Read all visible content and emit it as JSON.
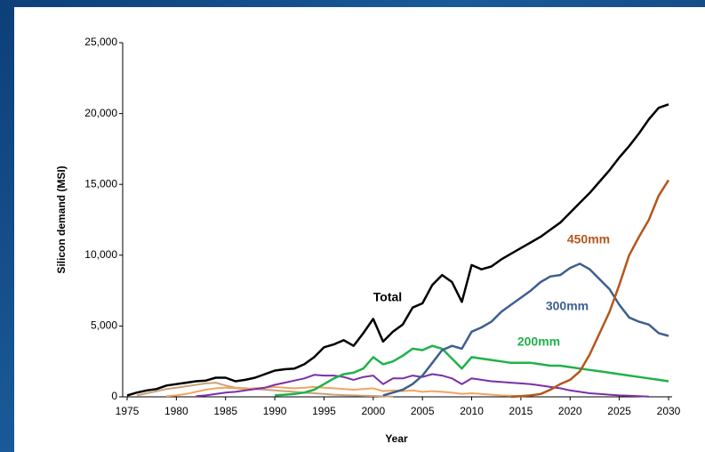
{
  "chart_data": {
    "type": "line",
    "xlabel": "Year",
    "ylabel": "Silicon demand (MSI)",
    "x": [
      1975,
      1976,
      1977,
      1978,
      1979,
      1980,
      1981,
      1982,
      1983,
      1984,
      1985,
      1986,
      1987,
      1988,
      1989,
      1990,
      1991,
      1992,
      1993,
      1994,
      1995,
      1996,
      1997,
      1998,
      1999,
      2000,
      2001,
      2002,
      2003,
      2004,
      2005,
      2006,
      2007,
      2008,
      2009,
      2010,
      2011,
      2012,
      2013,
      2014,
      2015,
      2016,
      2017,
      2018,
      2019,
      2020,
      2021,
      2022,
      2023,
      2024,
      2025,
      2026,
      2027,
      2028,
      2029,
      2030
    ],
    "xlim": [
      1975,
      2030
    ],
    "xticks": [
      1975,
      1980,
      1985,
      1990,
      1995,
      2000,
      2005,
      2010,
      2015,
      2020,
      2025,
      2030
    ],
    "ylim": [
      0,
      25000
    ],
    "yticks": [
      0,
      {
        "value": 5000,
        "label": "5,000"
      },
      {
        "value": 10000,
        "label": "10,000"
      },
      {
        "value": 15000,
        "label": "15,000"
      },
      {
        "value": 20000,
        "label": "20,000"
      },
      {
        "value": 25000,
        "label": "25,000"
      }
    ],
    "series": [
      {
        "color": "#c8a27a",
        "values": [
          null,
          100,
          250,
          400,
          550,
          650,
          750,
          850,
          950,
          1000,
          800,
          650,
          600,
          550,
          500,
          450,
          400,
          350,
          300,
          250,
          200,
          150,
          120,
          100,
          80,
          60,
          40,
          20,
          null,
          null,
          null,
          null,
          null,
          null,
          null,
          null,
          null,
          null,
          null,
          null,
          null,
          null,
          null,
          null,
          null,
          null,
          null,
          null,
          null,
          null,
          null,
          null,
          null,
          null,
          null,
          null
        ]
      },
      {
        "color": "#f4a460",
        "values": [
          null,
          null,
          null,
          null,
          50,
          100,
          200,
          350,
          500,
          600,
          650,
          600,
          550,
          600,
          650,
          700,
          650,
          600,
          650,
          700,
          650,
          600,
          550,
          500,
          550,
          600,
          400,
          450,
          400,
          450,
          350,
          400,
          350,
          300,
          200,
          250,
          200,
          150,
          100,
          80,
          50,
          null,
          null,
          null,
          null,
          null,
          null,
          null,
          null,
          null,
          null,
          null,
          null,
          null,
          null,
          null
        ]
      },
      {
        "color": "#7b2fa8",
        "values": [
          null,
          null,
          null,
          null,
          null,
          null,
          null,
          50,
          100,
          200,
          300,
          350,
          450,
          550,
          650,
          850,
          1000,
          1150,
          1300,
          1550,
          1500,
          1500,
          1400,
          1200,
          1400,
          1500,
          900,
          1300,
          1300,
          1500,
          1400,
          1600,
          1500,
          1300,
          900,
          1300,
          1200,
          1100,
          1050,
          1000,
          950,
          900,
          800,
          700,
          600,
          450,
          350,
          250,
          200,
          150,
          100,
          80,
          50,
          20,
          null,
          null
        ]
      },
      {
        "name": "200mm",
        "color": "#1fb24a",
        "values": [
          null,
          null,
          null,
          null,
          null,
          null,
          null,
          null,
          null,
          null,
          null,
          null,
          null,
          null,
          null,
          100,
          150,
          200,
          300,
          500,
          900,
          1300,
          1600,
          1700,
          2000,
          2800,
          2300,
          2500,
          2900,
          3400,
          3300,
          3600,
          3400,
          2700,
          2000,
          2800,
          2700,
          2600,
          2500,
          2400,
          2400,
          2400,
          2300,
          2200,
          2200,
          2100,
          2000,
          1900,
          1800,
          1700,
          1600,
          1500,
          1400,
          1300,
          1200,
          1100
        ]
      },
      {
        "name": "300mm",
        "color": "#3d5f8f",
        "values": [
          null,
          null,
          null,
          null,
          null,
          null,
          null,
          null,
          null,
          null,
          null,
          null,
          null,
          null,
          null,
          null,
          null,
          null,
          null,
          null,
          null,
          null,
          null,
          null,
          null,
          null,
          100,
          300,
          500,
          900,
          1500,
          2400,
          3300,
          3600,
          3400,
          4600,
          4900,
          5300,
          6000,
          6500,
          7000,
          7500,
          8100,
          8500,
          8600,
          9100,
          9400,
          9000,
          8300,
          7600,
          6500,
          5600,
          5300,
          5100,
          4500,
          4300
        ]
      },
      {
        "name": "450mm",
        "color": "#b5561c",
        "values": [
          null,
          null,
          null,
          null,
          null,
          null,
          null,
          null,
          null,
          null,
          null,
          null,
          null,
          null,
          null,
          null,
          null,
          null,
          null,
          null,
          null,
          null,
          null,
          null,
          null,
          null,
          null,
          null,
          null,
          null,
          null,
          null,
          null,
          null,
          null,
          null,
          null,
          null,
          null,
          0,
          50,
          100,
          200,
          500,
          900,
          1200,
          1800,
          3000,
          4500,
          6000,
          7900,
          10000,
          11300,
          12500,
          14200,
          15300
        ]
      },
      {
        "name": "Total",
        "color": "#000000",
        "values": [
          100,
          300,
          450,
          550,
          800,
          900,
          1000,
          1100,
          1150,
          1350,
          1350,
          1100,
          1200,
          1350,
          1600,
          1850,
          1950,
          2000,
          2300,
          2800,
          3500,
          3700,
          4000,
          3600,
          4500,
          5500,
          3900,
          4600,
          5100,
          6300,
          6600,
          7900,
          8600,
          8100,
          6700,
          9300,
          9000,
          9200,
          9700,
          10100,
          10500,
          10900,
          11300,
          11800,
          12300,
          13000,
          13700,
          14400,
          15200,
          16000,
          16900,
          17700,
          18600,
          19600,
          20400,
          20650
        ]
      }
    ]
  }
}
